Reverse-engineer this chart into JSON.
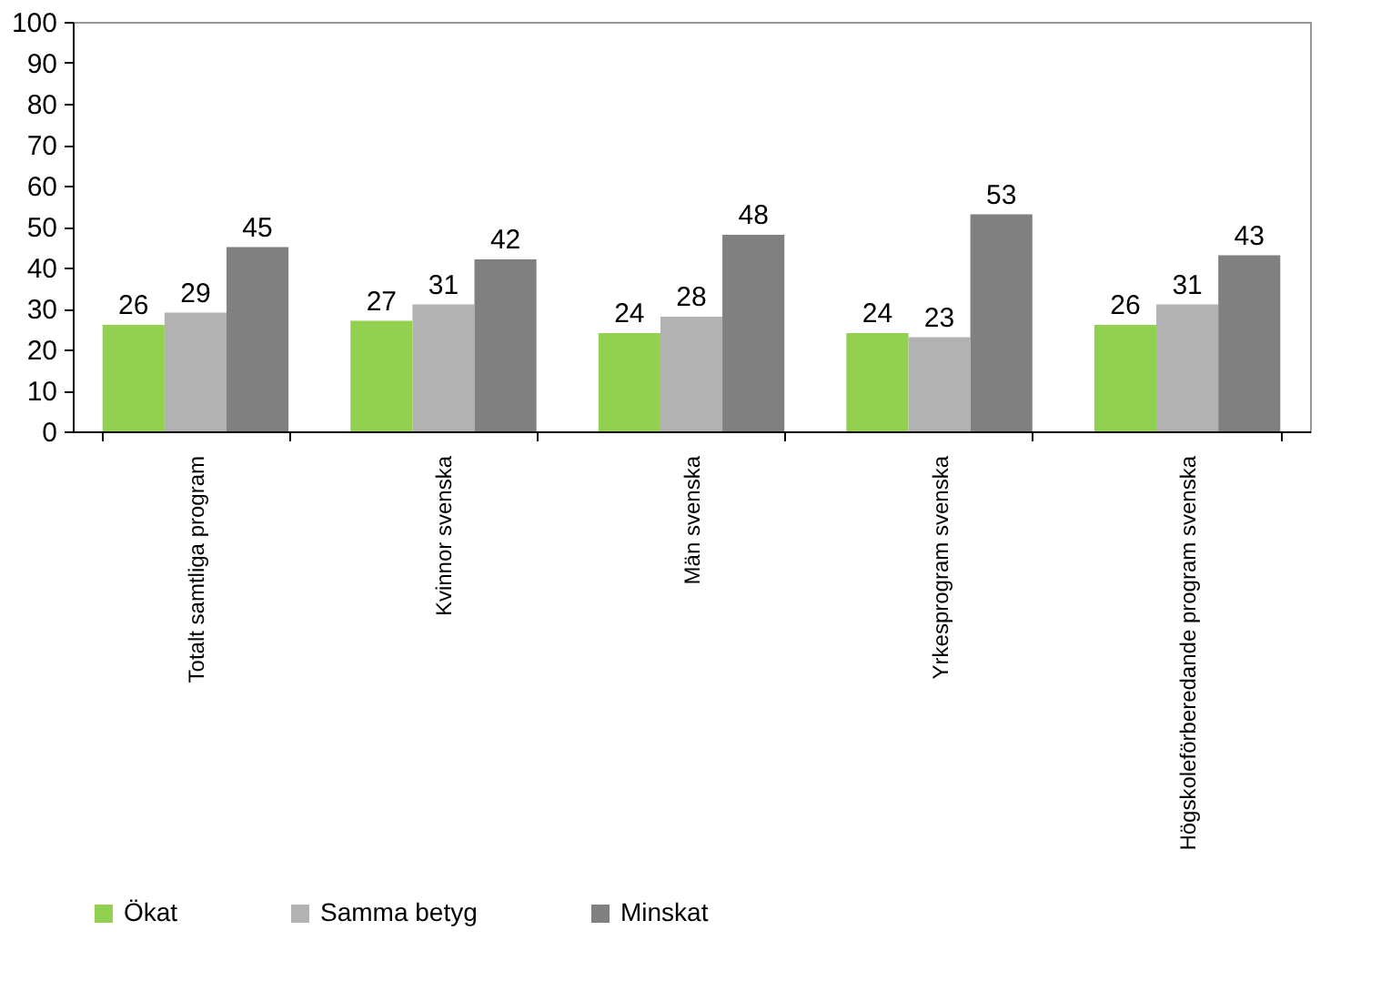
{
  "chart_data": {
    "type": "bar",
    "categories": [
      "Totalt samtliga program",
      "Kvinnor svenska",
      "Män svenska",
      "Yrkesprogram svenska",
      "Högskoleförberedande program svenska"
    ],
    "series": [
      {
        "name": "Ökat",
        "color": "#92d050",
        "values": [
          26,
          27,
          24,
          24,
          26
        ]
      },
      {
        "name": "Samma betyg",
        "color": "#b2b2b2",
        "values": [
          29,
          31,
          28,
          23,
          31
        ]
      },
      {
        "name": "Minskat",
        "color": "#808080",
        "values": [
          45,
          42,
          48,
          53,
          43
        ]
      }
    ],
    "ylim": [
      0,
      100
    ],
    "yticks": [
      0,
      10,
      20,
      30,
      40,
      50,
      60,
      70,
      80,
      90,
      100
    ],
    "grid": false,
    "legend": "bottom",
    "data_labels": true
  }
}
